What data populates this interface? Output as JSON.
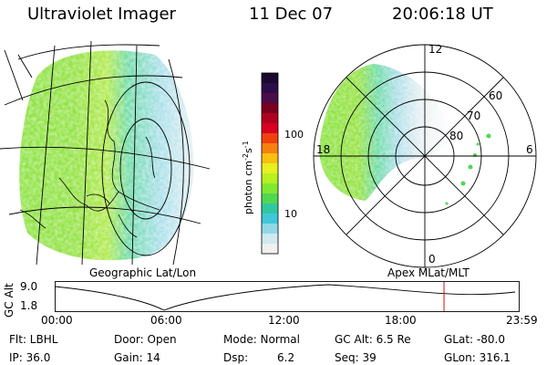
{
  "header": {
    "title": "Ultraviolet Imager",
    "date": "11 Dec 07",
    "time": "20:06:18 UT"
  },
  "panels": {
    "left_label": "Geographic Lat/Lon",
    "right_label": "Apex MLat/MLT"
  },
  "colorbar": {
    "unit_label": "photon cm",
    "unit_sup1": "-2",
    "unit_s": "s",
    "unit_sup2": "-1",
    "ticks": [
      "100",
      "10"
    ],
    "colors": [
      "#1a0a2e",
      "#2b0d4a",
      "#4a0d4a",
      "#7a0020",
      "#b00020",
      "#d80020",
      "#f04010",
      "#f88010",
      "#f8c010",
      "#e8f020",
      "#b8f020",
      "#80e830",
      "#50d850",
      "#30c8a0",
      "#40c8d8",
      "#90d8e8",
      "#d0e8f0",
      "#f0f0f0"
    ]
  },
  "polar": {
    "mlt_labels": {
      "top": "12",
      "left": "18",
      "right": "6",
      "bottom": "0"
    },
    "lat_labels": [
      "80",
      "70",
      "60"
    ]
  },
  "timeline": {
    "y_axis_label": "GC Alt",
    "y_top": "9.0",
    "y_bottom": "1.8",
    "x_ticks": [
      "00:00",
      "06:00",
      "12:00",
      "18:00",
      "23:59"
    ],
    "marker_time_fraction": 0.838
  },
  "status": {
    "flt": "Flt: LBHL",
    "ip": "IP: 36.0",
    "door": "Door: Open",
    "gain": "Gain: 14",
    "mode": "Mode: Normal",
    "dsp": "Dsp:",
    "dsp_val": "6.2",
    "gcalt": "GC Alt: 6.5 Re",
    "seq": "Seq: 39",
    "glat": "GLat: -80.0",
    "glon": "GLon: 316.1"
  }
}
